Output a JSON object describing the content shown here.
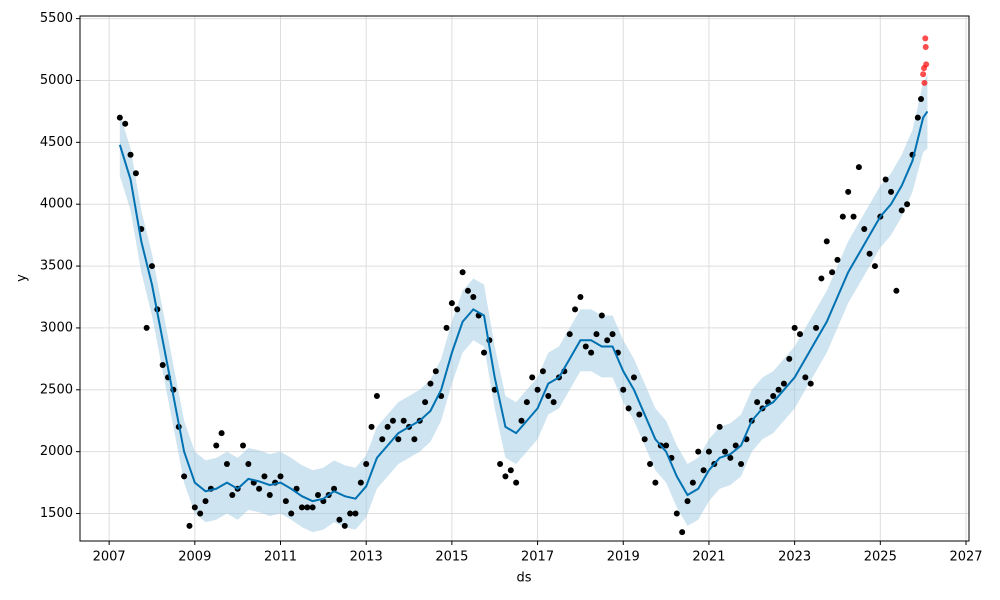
{
  "chart_data": {
    "type": "line",
    "x_label": "ds",
    "y_label": "y",
    "xlim": [
      2006.32,
      2027.07
    ],
    "xticks": [
      2007,
      2009,
      2011,
      2013,
      2015,
      2017,
      2019,
      2021,
      2023,
      2025,
      2027
    ],
    "ylim": [
      1278,
      5521
    ],
    "yticks": [
      1500,
      2000,
      2500,
      3000,
      3500,
      4000,
      4500,
      5000,
      5500
    ],
    "grid": true,
    "forecast": {
      "color": "#0072B2",
      "band_color": "#9ecae1",
      "x": [
        2007.25,
        2007.5,
        2007.75,
        2008.0,
        2008.25,
        2008.5,
        2008.75,
        2009.0,
        2009.25,
        2009.5,
        2009.75,
        2010.0,
        2010.25,
        2010.5,
        2010.75,
        2011.0,
        2011.25,
        2011.5,
        2011.75,
        2012.0,
        2012.25,
        2012.5,
        2012.75,
        2013.0,
        2013.25,
        2013.5,
        2013.75,
        2014.0,
        2014.25,
        2014.5,
        2014.75,
        2015.0,
        2015.25,
        2015.5,
        2015.75,
        2016.0,
        2016.25,
        2016.5,
        2016.75,
        2017.0,
        2017.25,
        2017.5,
        2017.75,
        2018.0,
        2018.25,
        2018.5,
        2018.75,
        2019.0,
        2019.25,
        2019.5,
        2019.75,
        2020.0,
        2020.25,
        2020.5,
        2020.75,
        2021.0,
        2021.25,
        2021.5,
        2021.75,
        2022.0,
        2022.25,
        2022.5,
        2022.75,
        2023.0,
        2023.25,
        2023.5,
        2023.75,
        2024.0,
        2024.25,
        2024.5,
        2024.75,
        2025.0,
        2025.25,
        2025.5,
        2025.75,
        2026.0,
        2026.1
      ],
      "values": [
        4480,
        4200,
        3700,
        3350,
        2900,
        2450,
        2000,
        1750,
        1680,
        1700,
        1750,
        1700,
        1780,
        1760,
        1730,
        1750,
        1700,
        1640,
        1600,
        1620,
        1680,
        1640,
        1620,
        1720,
        1950,
        2050,
        2150,
        2200,
        2250,
        2330,
        2500,
        2800,
        3050,
        3150,
        3100,
        2600,
        2200,
        2150,
        2250,
        2350,
        2550,
        2600,
        2750,
        2900,
        2900,
        2850,
        2850,
        2650,
        2500,
        2300,
        2100,
        2000,
        1800,
        1650,
        1700,
        1850,
        1950,
        1980,
        2050,
        2250,
        2350,
        2400,
        2500,
        2600,
        2750,
        2900,
        3050,
        3250,
        3450,
        3600,
        3750,
        3900,
        4000,
        4150,
        4350,
        4700,
        4750
      ],
      "lower": [
        4230,
        3950,
        3450,
        3100,
        2650,
        2200,
        1750,
        1500,
        1430,
        1450,
        1500,
        1450,
        1530,
        1510,
        1480,
        1500,
        1450,
        1390,
        1350,
        1370,
        1430,
        1390,
        1370,
        1470,
        1700,
        1800,
        1900,
        1950,
        2000,
        2080,
        2250,
        2550,
        2800,
        2900,
        2850,
        2350,
        1950,
        1900,
        2000,
        2100,
        2300,
        2350,
        2500,
        2650,
        2650,
        2600,
        2600,
        2400,
        2250,
        2050,
        1850,
        1750,
        1550,
        1400,
        1450,
        1600,
        1700,
        1730,
        1800,
        2000,
        2100,
        2150,
        2250,
        2350,
        2500,
        2650,
        2800,
        3000,
        3200,
        3350,
        3500,
        3650,
        3750,
        3900,
        4100,
        4420,
        4450
      ],
      "upper": [
        4730,
        4450,
        3950,
        3600,
        3150,
        2700,
        2250,
        2000,
        1930,
        1950,
        2000,
        1950,
        2030,
        2010,
        1980,
        2000,
        1950,
        1890,
        1850,
        1870,
        1930,
        1890,
        1870,
        1970,
        2200,
        2300,
        2400,
        2450,
        2500,
        2580,
        2750,
        3050,
        3300,
        3400,
        3350,
        2850,
        2450,
        2400,
        2500,
        2600,
        2800,
        2850,
        3000,
        3150,
        3150,
        3100,
        3100,
        2900,
        2750,
        2550,
        2350,
        2250,
        2050,
        1900,
        1950,
        2100,
        2200,
        2230,
        2300,
        2500,
        2600,
        2650,
        2750,
        2850,
        3000,
        3150,
        3300,
        3500,
        3700,
        3850,
        4000,
        4150,
        4250,
        4400,
        4600,
        4980,
        5050
      ]
    },
    "observed": {
      "color": "#000000",
      "x": [
        2007.25,
        2007.375,
        2007.5,
        2007.625,
        2007.75,
        2007.875,
        2008.0,
        2008.125,
        2008.25,
        2008.375,
        2008.5,
        2008.625,
        2008.75,
        2008.875,
        2009.0,
        2009.125,
        2009.25,
        2009.375,
        2009.5,
        2009.625,
        2009.75,
        2009.875,
        2010.0,
        2010.125,
        2010.25,
        2010.375,
        2010.5,
        2010.625,
        2010.75,
        2010.875,
        2011.0,
        2011.125,
        2011.25,
        2011.375,
        2011.5,
        2011.625,
        2011.75,
        2011.875,
        2012.0,
        2012.125,
        2012.25,
        2012.375,
        2012.5,
        2012.625,
        2012.75,
        2012.875,
        2013.0,
        2013.125,
        2013.25,
        2013.375,
        2013.5,
        2013.625,
        2013.75,
        2013.875,
        2014.0,
        2014.125,
        2014.25,
        2014.375,
        2014.5,
        2014.625,
        2014.75,
        2014.875,
        2015.0,
        2015.125,
        2015.25,
        2015.375,
        2015.5,
        2015.625,
        2015.75,
        2015.875,
        2016.0,
        2016.125,
        2016.25,
        2016.375,
        2016.5,
        2016.625,
        2016.75,
        2016.875,
        2017.0,
        2017.125,
        2017.25,
        2017.375,
        2017.5,
        2017.625,
        2017.75,
        2017.875,
        2018.0,
        2018.125,
        2018.25,
        2018.375,
        2018.5,
        2018.625,
        2018.75,
        2018.875,
        2019.0,
        2019.125,
        2019.25,
        2019.375,
        2019.5,
        2019.625,
        2019.75,
        2019.875,
        2020.0,
        2020.125,
        2020.25,
        2020.375,
        2020.5,
        2020.625,
        2020.75,
        2020.875,
        2021.0,
        2021.125,
        2021.25,
        2021.375,
        2021.5,
        2021.625,
        2021.75,
        2021.875,
        2022.0,
        2022.125,
        2022.25,
        2022.375,
        2022.5,
        2022.625,
        2022.75,
        2022.875,
        2023.0,
        2023.125,
        2023.25,
        2023.375,
        2023.5,
        2023.625,
        2023.75,
        2023.875,
        2024.0,
        2024.125,
        2024.25,
        2024.375,
        2024.5,
        2024.625,
        2024.75,
        2024.875,
        2025.0,
        2025.125,
        2025.25,
        2025.375,
        2025.5,
        2025.625,
        2025.75,
        2025.875,
        2025.95
      ],
      "y": [
        4700,
        4650,
        4400,
        4250,
        3800,
        3000,
        3500,
        3150,
        2700,
        2600,
        2500,
        2200,
        1800,
        1400,
        1550,
        1500,
        1600,
        1700,
        2050,
        2150,
        1900,
        1650,
        1700,
        2050,
        1900,
        1750,
        1700,
        1800,
        1650,
        1750,
        1800,
        1600,
        1500,
        1700,
        1550,
        1550,
        1550,
        1650,
        1600,
        1650,
        1700,
        1450,
        1400,
        1500,
        1500,
        1750,
        1900,
        2200,
        2450,
        2100,
        2200,
        2250,
        2100,
        2250,
        2200,
        2100,
        2250,
        2400,
        2550,
        2650,
        2450,
        3000,
        3200,
        3150,
        3450,
        3300,
        3250,
        3100,
        2800,
        2900,
        2500,
        1900,
        1800,
        1850,
        1750,
        2250,
        2400,
        2600,
        2500,
        2650,
        2450,
        2400,
        2600,
        2650,
        2950,
        3150,
        3250,
        2850,
        2800,
        2950,
        3100,
        2900,
        2950,
        2800,
        2500,
        2350,
        2600,
        2300,
        2100,
        1900,
        1750,
        2050,
        2050,
        1950,
        1500,
        1350,
        1600,
        1750,
        2000,
        1850,
        2000,
        1900,
        2200,
        2000,
        1950,
        2050,
        1900,
        2100,
        2250,
        2400,
        2350,
        2400,
        2450,
        2500,
        2550,
        2750,
        3000,
        2950,
        2600,
        2550,
        3000,
        3400,
        3700,
        3450,
        3550,
        3900,
        4100,
        3900,
        4300,
        3800,
        3600,
        3500,
        3900,
        4200,
        4100,
        3300,
        3950,
        4000,
        4400,
        4700,
        4850
      ]
    },
    "outliers": {
      "color": "#ff0000",
      "x": [
        2026.0,
        2026.02,
        2026.03,
        2026.05,
        2026.06,
        2026.07
      ],
      "y": [
        5050,
        5100,
        4980,
        5340,
        5270,
        5130
      ]
    }
  }
}
